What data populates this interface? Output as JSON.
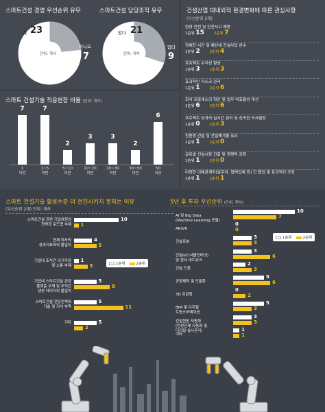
{
  "colors": {
    "white": "#ffffff",
    "yellow": "#f4c21a",
    "gray": "#a7abb2",
    "bg": "#3b3f47"
  },
  "pie1": {
    "title": "스마트건설 경영 우선순위 유무",
    "yes_label": "예",
    "yes_value": 23,
    "no_label": "아니오",
    "no_value": 7,
    "unit": "단위: 개사"
  },
  "pie2": {
    "title": "스마트건설 담당조직 유무",
    "yes_label": "있다",
    "yes_value": 21,
    "no_label": "없다",
    "no_value": 9,
    "unit": "단위: 개사"
  },
  "interest": {
    "title": "건설산업 대내외적 환경변화에 따른 관심사항",
    "subtitle": "(우선순위 2개)",
    "rank1_label": "1순위",
    "rank2_label": "2순위",
    "items": [
      {
        "label": "현장 안전 및 안전사고 예방",
        "r1": 15,
        "r2": 7
      },
      {
        "label": "정해진 시간 및 예산내 건설사업 완수",
        "r1": 2,
        "r2": 4
      },
      {
        "label": "프로젝트 수익성 향상",
        "r1": 3,
        "r2": 3
      },
      {
        "label": "효과적인 리스크 관리",
        "r1": 1,
        "r2": 6
      },
      {
        "label": "회사 프로세스의 혁신 및 업무 비효율성 개선",
        "r1": 6,
        "r2": 6
      },
      {
        "label": "프로젝트 성과의 실시간 관리 및 신속한 의사결정",
        "r1": 0,
        "r2": 3
      },
      {
        "label": "친환경 건설 및 건설폐기물 축소",
        "r1": 1,
        "r2": 0
      },
      {
        "label": "글로벌 건설시장 진출 및 경쟁력 강화",
        "r1": 1,
        "r2": 0
      },
      {
        "label": "다양한 이해관계자(발주처, 협력업체 등) 간 협업 및 효과적인 조정",
        "r1": 1,
        "r2": 1
      }
    ]
  },
  "ratio": {
    "title": "스마트 건설기술 적용현장 비율",
    "unit": "(단위: 개사)"
  },
  "reasons": {
    "title": "스마트 건설기술 활용수준 더 전진시키지 못하는 이유",
    "subtitle": "(우선순위 2개)",
    "unit": "단위: 개사",
    "legend": {
      "r1": "1순위",
      "r2": "2순위"
    }
  },
  "invest": {
    "title": "5년 후 투자 우선순위",
    "unit": "(단위: 개사)",
    "legend": {
      "r1": "1순위",
      "r2": "2순위"
    }
  },
  "chart_data": [
    {
      "type": "bar",
      "title": "스마트 건설기술 적용현장 비율",
      "categories": [
        "1 미만",
        "1~5 미만",
        "5~10 미만",
        "10~20 미만",
        "20~30 미만",
        "30~50 미만",
        "50 이상"
      ],
      "values": [
        7,
        7,
        2,
        3,
        3,
        2,
        6
      ]
    },
    {
      "type": "bar",
      "orientation": "horizontal",
      "title": "스마트 건설기술 활용수준 더 전진시키지 못하는 이유",
      "categories": [
        "스마트건설 관련 기업차원의 전략과 로드맵 부재",
        "현재 회사의 성과지표와의 불일치",
        "기업내 조직간 이기주의 및 소통 부재",
        "기업내 스마트건설 관련 플랫폼 부재 및 조직간 생성 데이터의 불일치",
        "스마트건설 전문인력의 기술 및 지식 부족",
        "기타"
      ],
      "series": [
        {
          "name": "1순위",
          "values": [
            10,
            4,
            1,
            5,
            5,
            5
          ]
        },
        {
          "name": "2순위",
          "values": [
            1,
            5,
            3,
            8,
            11,
            2
          ]
        }
      ]
    },
    {
      "type": "bar",
      "orientation": "horizontal",
      "title": "5년 후 투자 우선순위",
      "categories": [
        "AI 및 Big Data (Machine Learning 포함)",
        "AR/VR",
        "건설로봇",
        "건설IoT(사물인터넷) 및 센서 네트워크",
        "건설 드론",
        "공장제작 및 모듈화",
        "3D 프린팅",
        "BIM 및 디지털 트윈스포메이션",
        "건설현장 자동화 (현장관제 자동화 및 디지털 실시관리)",
        "기타"
      ],
      "series": [
        {
          "name": "1순위",
          "values": [
            10,
            0,
            3,
            3,
            2,
            5,
            0,
            5,
            3,
            1
          ]
        },
        {
          "name": "2순위",
          "values": [
            7,
            0,
            3,
            6,
            3,
            6,
            2,
            3,
            3,
            1
          ]
        }
      ]
    }
  ]
}
